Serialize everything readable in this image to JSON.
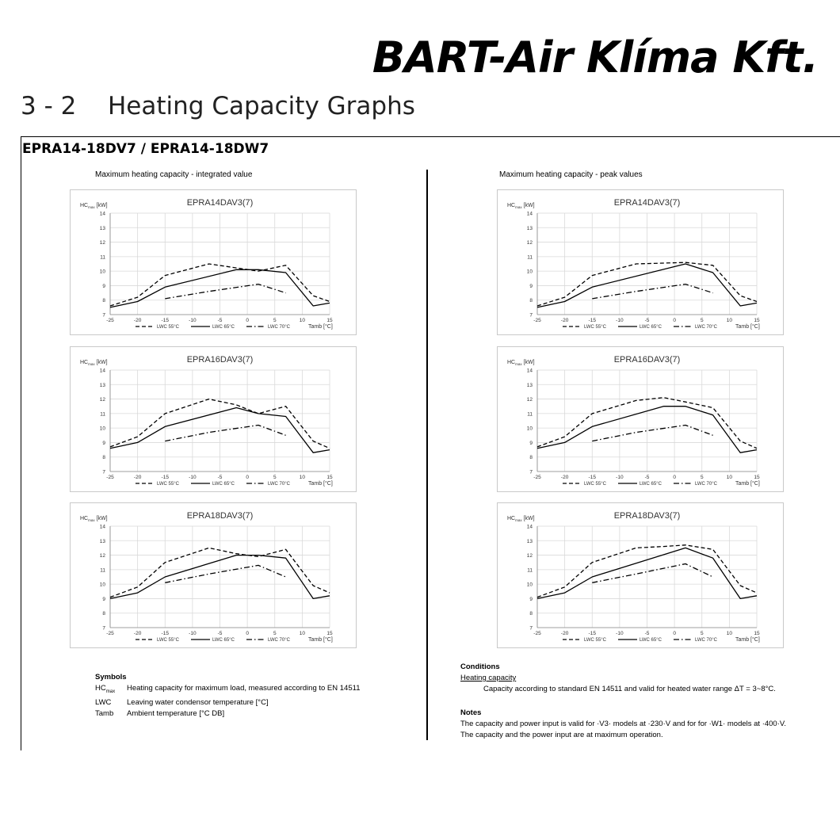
{
  "header": {
    "brand": "BART-Air Klíma Kft.",
    "section_number": "3 - 2",
    "section_title": "Heating Capacity Graphs",
    "model_title": "EPRA14-18DV7 / EPRA14-18DW7"
  },
  "columns": [
    {
      "title": "Maximum heating capacity - integrated value"
    },
    {
      "title": "Maximum heating capacity - peak values"
    }
  ],
  "chart_data": [
    {
      "type": "line",
      "title": "EPRA14DAV3(7)",
      "ylabel_prefix": "HC",
      "ylabel_sub": "max",
      "ylabel_unit": "[kW]",
      "xlabel": "Tamb [°C]",
      "xlim": [
        -25,
        15
      ],
      "ylim": [
        7,
        14
      ],
      "x_ticks": [
        -25,
        -20,
        -15,
        -10,
        -5,
        0,
        5,
        10,
        15
      ],
      "y_ticks": [
        7,
        8,
        9,
        10,
        11,
        12,
        13,
        14
      ],
      "grid": true,
      "legend_position": "bottom",
      "series": [
        {
          "name": "LWC 55°C",
          "style": "dashed",
          "points": [
            [
              -25,
              7.6
            ],
            [
              -20,
              8.2
            ],
            [
              -15,
              9.7
            ],
            [
              -7,
              10.5
            ],
            [
              2,
              10.0
            ],
            [
              7,
              10.4
            ],
            [
              12,
              8.3
            ],
            [
              15,
              7.9
            ]
          ]
        },
        {
          "name": "LWC 65°C",
          "style": "solid",
          "points": [
            [
              -25,
              7.5
            ],
            [
              -20,
              7.9
            ],
            [
              -15,
              8.9
            ],
            [
              -2,
              10.1
            ],
            [
              2,
              10.1
            ],
            [
              7,
              9.9
            ],
            [
              12,
              7.6
            ],
            [
              15,
              7.8
            ]
          ]
        },
        {
          "name": "LWC 70°C",
          "style": "dashdot",
          "points": [
            [
              -15,
              8.1
            ],
            [
              -7,
              8.6
            ],
            [
              2,
              9.1
            ],
            [
              7,
              8.5
            ]
          ]
        }
      ]
    },
    {
      "type": "line",
      "title": "EPRA16DAV3(7)",
      "ylabel_prefix": "HC",
      "ylabel_sub": "max",
      "ylabel_unit": "[kW]",
      "xlabel": "Tamb [°C]",
      "xlim": [
        -25,
        15
      ],
      "ylim": [
        7,
        14
      ],
      "x_ticks": [
        -25,
        -20,
        -15,
        -10,
        -5,
        0,
        5,
        10,
        15
      ],
      "y_ticks": [
        7,
        8,
        9,
        10,
        11,
        12,
        13,
        14
      ],
      "grid": true,
      "legend_position": "bottom",
      "series": [
        {
          "name": "LWC 55°C",
          "style": "dashed",
          "points": [
            [
              -25,
              8.7
            ],
            [
              -20,
              9.4
            ],
            [
              -15,
              11.0
            ],
            [
              -7,
              12.0
            ],
            [
              -2,
              11.6
            ],
            [
              2,
              11.0
            ],
            [
              7,
              11.5
            ],
            [
              12,
              9.1
            ],
            [
              15,
              8.6
            ]
          ]
        },
        {
          "name": "LWC 65°C",
          "style": "solid",
          "points": [
            [
              -25,
              8.6
            ],
            [
              -20,
              9.0
            ],
            [
              -15,
              10.1
            ],
            [
              -2,
              11.4
            ],
            [
              2,
              11.0
            ],
            [
              7,
              10.8
            ],
            [
              12,
              8.3
            ],
            [
              15,
              8.5
            ]
          ]
        },
        {
          "name": "LWC 70°C",
          "style": "dashdot",
          "points": [
            [
              -15,
              9.1
            ],
            [
              -7,
              9.7
            ],
            [
              2,
              10.2
            ],
            [
              7,
              9.5
            ]
          ]
        }
      ]
    },
    {
      "type": "line",
      "title": "EPRA18DAV3(7)",
      "ylabel_prefix": "HC",
      "ylabel_sub": "max",
      "ylabel_unit": "[kW]",
      "xlabel": "Tamb [°C]",
      "xlim": [
        -25,
        15
      ],
      "ylim": [
        7,
        14
      ],
      "x_ticks": [
        -25,
        -20,
        -15,
        -10,
        -5,
        0,
        5,
        10,
        15
      ],
      "y_ticks": [
        7,
        8,
        9,
        10,
        11,
        12,
        13,
        14
      ],
      "grid": true,
      "legend_position": "bottom",
      "series": [
        {
          "name": "LWC 55°C",
          "style": "dashed",
          "points": [
            [
              -25,
              9.1
            ],
            [
              -20,
              9.8
            ],
            [
              -15,
              11.5
            ],
            [
              -7,
              12.5
            ],
            [
              -2,
              12.1
            ],
            [
              2,
              11.9
            ],
            [
              7,
              12.4
            ],
            [
              12,
              9.9
            ],
            [
              15,
              9.4
            ]
          ]
        },
        {
          "name": "LWC 65°C",
          "style": "solid",
          "points": [
            [
              -25,
              9.0
            ],
            [
              -20,
              9.4
            ],
            [
              -15,
              10.5
            ],
            [
              -2,
              12.0
            ],
            [
              2,
              12.0
            ],
            [
              7,
              11.8
            ],
            [
              12,
              9.0
            ],
            [
              15,
              9.2
            ]
          ]
        },
        {
          "name": "LWC 70°C",
          "style": "dashdot",
          "points": [
            [
              -15,
              10.1
            ],
            [
              -7,
              10.7
            ],
            [
              2,
              11.3
            ],
            [
              7,
              10.5
            ]
          ]
        }
      ]
    },
    {
      "type": "line",
      "title": "EPRA14DAV3(7)",
      "ylabel_prefix": "HC",
      "ylabel_sub": "max",
      "ylabel_unit": "[kW]",
      "xlabel": "Tamb [°C]",
      "xlim": [
        -25,
        15
      ],
      "ylim": [
        7,
        14
      ],
      "x_ticks": [
        -25,
        -20,
        -15,
        -10,
        -5,
        0,
        5,
        10,
        15
      ],
      "y_ticks": [
        7,
        8,
        9,
        10,
        11,
        12,
        13,
        14
      ],
      "grid": true,
      "legend_position": "bottom",
      "series": [
        {
          "name": "LWC 55°C",
          "style": "dashed",
          "points": [
            [
              -25,
              7.6
            ],
            [
              -20,
              8.2
            ],
            [
              -15,
              9.7
            ],
            [
              -7,
              10.5
            ],
            [
              2,
              10.6
            ],
            [
              7,
              10.4
            ],
            [
              12,
              8.3
            ],
            [
              15,
              7.9
            ]
          ]
        },
        {
          "name": "LWC 65°C",
          "style": "solid",
          "points": [
            [
              -25,
              7.5
            ],
            [
              -20,
              7.9
            ],
            [
              -15,
              8.9
            ],
            [
              2,
              10.5
            ],
            [
              7,
              9.9
            ],
            [
              12,
              7.6
            ],
            [
              15,
              7.8
            ]
          ]
        },
        {
          "name": "LWC 70°C",
          "style": "dashdot",
          "points": [
            [
              -15,
              8.1
            ],
            [
              -7,
              8.6
            ],
            [
              2,
              9.1
            ],
            [
              7,
              8.5
            ]
          ]
        }
      ]
    },
    {
      "type": "line",
      "title": "EPRA16DAV3(7)",
      "ylabel_prefix": "HC",
      "ylabel_sub": "max",
      "ylabel_unit": "[kW]",
      "xlabel": "Tamb [°C]",
      "xlim": [
        -25,
        15
      ],
      "ylim": [
        7,
        14
      ],
      "x_ticks": [
        -25,
        -20,
        -15,
        -10,
        -5,
        0,
        5,
        10,
        15
      ],
      "y_ticks": [
        7,
        8,
        9,
        10,
        11,
        12,
        13,
        14
      ],
      "grid": true,
      "legend_position": "bottom",
      "series": [
        {
          "name": "LWC 55°C",
          "style": "dashed",
          "points": [
            [
              -25,
              8.7
            ],
            [
              -20,
              9.4
            ],
            [
              -15,
              11.0
            ],
            [
              -7,
              11.9
            ],
            [
              -2,
              12.1
            ],
            [
              2,
              11.8
            ],
            [
              7,
              11.4
            ],
            [
              12,
              9.1
            ],
            [
              15,
              8.6
            ]
          ]
        },
        {
          "name": "LWC 65°C",
          "style": "solid",
          "points": [
            [
              -25,
              8.6
            ],
            [
              -20,
              9.0
            ],
            [
              -15,
              10.1
            ],
            [
              -2,
              11.5
            ],
            [
              2,
              11.5
            ],
            [
              7,
              10.9
            ],
            [
              12,
              8.3
            ],
            [
              15,
              8.5
            ]
          ]
        },
        {
          "name": "LWC 70°C",
          "style": "dashdot",
          "points": [
            [
              -15,
              9.1
            ],
            [
              -7,
              9.7
            ],
            [
              2,
              10.2
            ],
            [
              7,
              9.5
            ]
          ]
        }
      ]
    },
    {
      "type": "line",
      "title": "EPRA18DAV3(7)",
      "ylabel_prefix": "HC",
      "ylabel_sub": "max",
      "ylabel_unit": "[kW]",
      "xlabel": "Tamb [°C]",
      "xlim": [
        -25,
        15
      ],
      "ylim": [
        7,
        14
      ],
      "x_ticks": [
        -25,
        -20,
        -15,
        -10,
        -5,
        0,
        5,
        10,
        15
      ],
      "y_ticks": [
        7,
        8,
        9,
        10,
        11,
        12,
        13,
        14
      ],
      "grid": true,
      "legend_position": "bottom",
      "series": [
        {
          "name": "LWC 55°C",
          "style": "dashed",
          "points": [
            [
              -25,
              9.1
            ],
            [
              -20,
              9.8
            ],
            [
              -15,
              11.5
            ],
            [
              -7,
              12.5
            ],
            [
              -2,
              12.6
            ],
            [
              2,
              12.7
            ],
            [
              7,
              12.4
            ],
            [
              12,
              9.9
            ],
            [
              15,
              9.4
            ]
          ]
        },
        {
          "name": "LWC 65°C",
          "style": "solid",
          "points": [
            [
              -25,
              9.0
            ],
            [
              -20,
              9.4
            ],
            [
              -15,
              10.5
            ],
            [
              2,
              12.5
            ],
            [
              7,
              11.8
            ],
            [
              12,
              9.0
            ],
            [
              15,
              9.2
            ]
          ]
        },
        {
          "name": "LWC 70°C",
          "style": "dashdot",
          "points": [
            [
              -15,
              10.1
            ],
            [
              -7,
              10.7
            ],
            [
              2,
              11.4
            ],
            [
              7,
              10.5
            ]
          ]
        }
      ]
    }
  ],
  "symbols": {
    "heading": "Symbols",
    "items": [
      {
        "prefix": "HC",
        "sub": "max",
        "desc": "Heating capacity for maximum load, measured according to EN 14511"
      },
      {
        "prefix": "LWC",
        "sub": "",
        "desc": "Leaving water condensor temperature [°C]"
      },
      {
        "prefix": "Tamb",
        "sub": "",
        "desc": "Ambient temperature [°C DB]"
      }
    ]
  },
  "conditions": {
    "heading": "Conditions",
    "subheading": "Heating capacity",
    "text": "Capacity according to standard EN 14511 and valid for heated water range ΔT = 3~8°C."
  },
  "notes": {
    "heading": "Notes",
    "lines": [
      "The capacity and power input is valid for ·V3· models at ·230·V and for for ·W1· models at ·400·V.",
      "The capacity and the power input are at maximum operation."
    ]
  }
}
